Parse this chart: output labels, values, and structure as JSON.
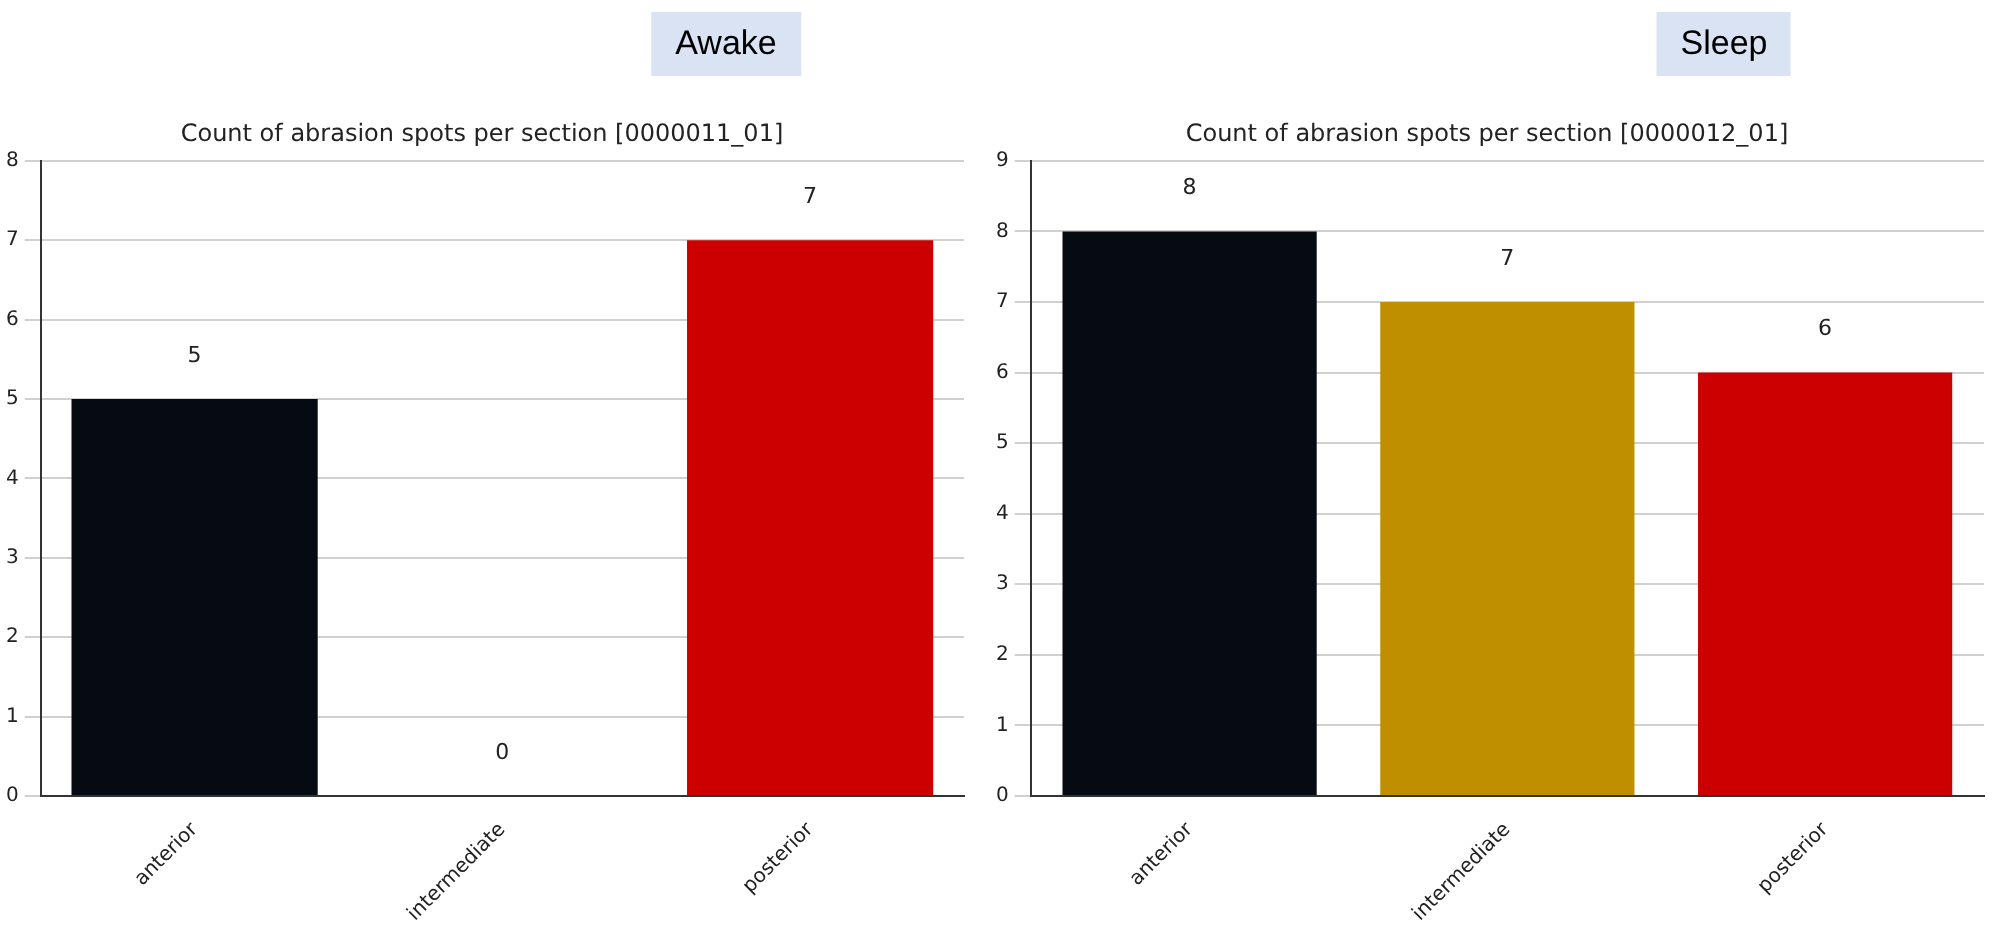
{
  "chart_data": [
    {
      "type": "bar",
      "subtitle": "Awake",
      "title": "Count of abrasion spots per section [0000011_01]",
      "categories": [
        "anterior",
        "intermediate",
        "posterior"
      ],
      "values": [
        5,
        0,
        7
      ],
      "colors": [
        "#060a12",
        "#bf8f00",
        "#cc0000"
      ],
      "ylim": [
        0,
        8
      ],
      "yticks": [
        0,
        1,
        2,
        3,
        4,
        5,
        6,
        7,
        8
      ],
      "grid": "y",
      "data_labels": true,
      "legend": false
    },
    {
      "type": "bar",
      "subtitle": "Sleep",
      "title": "Count of abrasion spots per section [0000012_01]",
      "categories": [
        "anterior",
        "intermediate",
        "posterior"
      ],
      "values": [
        8,
        7,
        6
      ],
      "colors": [
        "#060a12",
        "#bf8f00",
        "#cc0000"
      ],
      "ylim": [
        0,
        9
      ],
      "yticks": [
        0,
        1,
        2,
        3,
        4,
        5,
        6,
        7,
        8,
        9
      ],
      "grid": "y",
      "data_labels": true,
      "legend": false
    }
  ]
}
